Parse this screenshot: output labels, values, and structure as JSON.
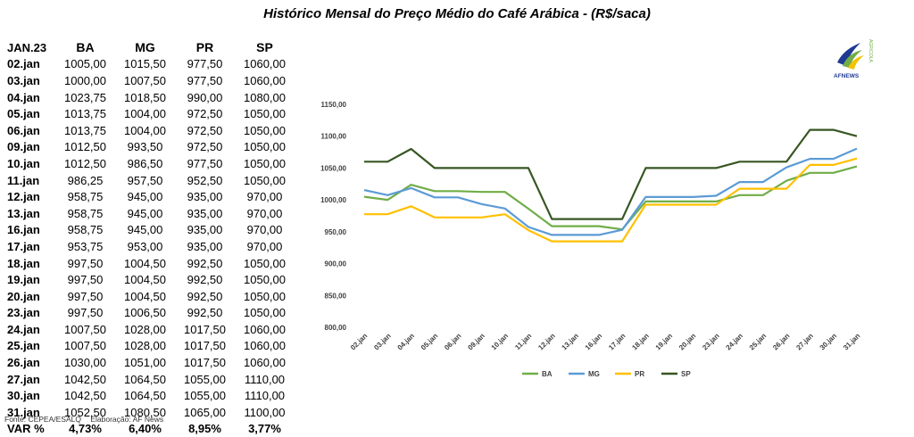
{
  "title": "Histórico Mensal do Preço Médio do Café Arábica - (R$/saca)",
  "table": {
    "period": "JAN.23",
    "columns": [
      "BA",
      "MG",
      "PR",
      "SP"
    ],
    "rows": [
      {
        "date": "02.jan",
        "values": [
          "1005,00",
          "1015,50",
          "977,50",
          "1060,00"
        ]
      },
      {
        "date": "03.jan",
        "values": [
          "1000,00",
          "1007,50",
          "977,50",
          "1060,00"
        ]
      },
      {
        "date": "04.jan",
        "values": [
          "1023,75",
          "1018,50",
          "990,00",
          "1080,00"
        ]
      },
      {
        "date": "05.jan",
        "values": [
          "1013,75",
          "1004,00",
          "972,50",
          "1050,00"
        ]
      },
      {
        "date": "06.jan",
        "values": [
          "1013,75",
          "1004,00",
          "972,50",
          "1050,00"
        ]
      },
      {
        "date": "09.jan",
        "values": [
          "1012,50",
          "993,50",
          "972,50",
          "1050,00"
        ]
      },
      {
        "date": "10.jan",
        "values": [
          "1012,50",
          "986,50",
          "977,50",
          "1050,00"
        ]
      },
      {
        "date": "11.jan",
        "values": [
          "986,25",
          "957,50",
          "952,50",
          "1050,00"
        ]
      },
      {
        "date": "12.jan",
        "values": [
          "958,75",
          "945,00",
          "935,00",
          "970,00"
        ]
      },
      {
        "date": "13.jan",
        "values": [
          "958,75",
          "945,00",
          "935,00",
          "970,00"
        ]
      },
      {
        "date": "16.jan",
        "values": [
          "958,75",
          "945,00",
          "935,00",
          "970,00"
        ]
      },
      {
        "date": "17.jan",
        "values": [
          "953,75",
          "953,00",
          "935,00",
          "970,00"
        ]
      },
      {
        "date": "18.jan",
        "values": [
          "997,50",
          "1004,50",
          "992,50",
          "1050,00"
        ]
      },
      {
        "date": "19.jan",
        "values": [
          "997,50",
          "1004,50",
          "992,50",
          "1050,00"
        ]
      },
      {
        "date": "20.jan",
        "values": [
          "997,50",
          "1004,50",
          "992,50",
          "1050,00"
        ]
      },
      {
        "date": "23.jan",
        "values": [
          "997,50",
          "1006,50",
          "992,50",
          "1050,00"
        ]
      },
      {
        "date": "24.jan",
        "values": [
          "1007,50",
          "1028,00",
          "1017,50",
          "1060,00"
        ]
      },
      {
        "date": "25.jan",
        "values": [
          "1007,50",
          "1028,00",
          "1017,50",
          "1060,00"
        ]
      },
      {
        "date": "26.jan",
        "values": [
          "1030,00",
          "1051,00",
          "1017,50",
          "1060,00"
        ]
      },
      {
        "date": "27.jan",
        "values": [
          "1042,50",
          "1064,50",
          "1055,00",
          "1110,00"
        ]
      },
      {
        "date": "30.jan",
        "values": [
          "1042,50",
          "1064,50",
          "1055,00",
          "1110,00"
        ]
      },
      {
        "date": "31.jan",
        "values": [
          "1052,50",
          "1080,50",
          "1065,00",
          "1100,00"
        ]
      }
    ],
    "var_label": "VAR %",
    "var_values": [
      "4,73%",
      "6,40%",
      "8,95%",
      "3,77%"
    ]
  },
  "source": "Fonte: CEPEA/ESALQ",
  "credit": "Elaboração: AF News",
  "logo": {
    "text": "AFNEWS",
    "side_text": "AGRÍCOLA",
    "icon": "af-news-leaf-logo"
  },
  "chart_data": {
    "type": "line",
    "categories": [
      "02.jan",
      "03.jan",
      "04.jan",
      "05.jan",
      "06.jan",
      "09.jan",
      "10.jan",
      "11.jan",
      "12.jan",
      "13.jan",
      "16.jan",
      "17.jan",
      "18.jan",
      "19.jan",
      "20.jan",
      "23.jan",
      "24.jan",
      "25.jan",
      "26.jan",
      "27.jan",
      "30.jan",
      "31.jan"
    ],
    "series": [
      {
        "name": "BA",
        "color": "#70ad47",
        "values": [
          1005.0,
          1000.0,
          1023.75,
          1013.75,
          1013.75,
          1012.5,
          1012.5,
          986.25,
          958.75,
          958.75,
          958.75,
          953.75,
          997.5,
          997.5,
          997.5,
          997.5,
          1007.5,
          1007.5,
          1030.0,
          1042.5,
          1042.5,
          1052.5
        ]
      },
      {
        "name": "MG",
        "color": "#5b9bd5",
        "values": [
          1015.5,
          1007.5,
          1018.5,
          1004.0,
          1004.0,
          993.5,
          986.5,
          957.5,
          945.0,
          945.0,
          945.0,
          953.0,
          1004.5,
          1004.5,
          1004.5,
          1006.5,
          1028.0,
          1028.0,
          1051.0,
          1064.5,
          1064.5,
          1080.5
        ]
      },
      {
        "name": "PR",
        "color": "#ffc000",
        "values": [
          977.5,
          977.5,
          990.0,
          972.5,
          972.5,
          972.5,
          977.5,
          952.5,
          935.0,
          935.0,
          935.0,
          935.0,
          992.5,
          992.5,
          992.5,
          992.5,
          1017.5,
          1017.5,
          1017.5,
          1055.0,
          1055.0,
          1065.0
        ]
      },
      {
        "name": "SP",
        "color": "#375623",
        "values": [
          1060.0,
          1060.0,
          1080.0,
          1050.0,
          1050.0,
          1050.0,
          1050.0,
          1050.0,
          970.0,
          970.0,
          970.0,
          970.0,
          1050.0,
          1050.0,
          1050.0,
          1050.0,
          1060.0,
          1060.0,
          1060.0,
          1110.0,
          1110.0,
          1100.0
        ]
      }
    ],
    "y_ticks": [
      "1150,00",
      "1100,00",
      "1050,00",
      "1000,00",
      "950,00",
      "900,00",
      "850,00",
      "800,00"
    ],
    "ylim": [
      800,
      1150
    ],
    "grid": false,
    "legend_position": "bottom"
  }
}
